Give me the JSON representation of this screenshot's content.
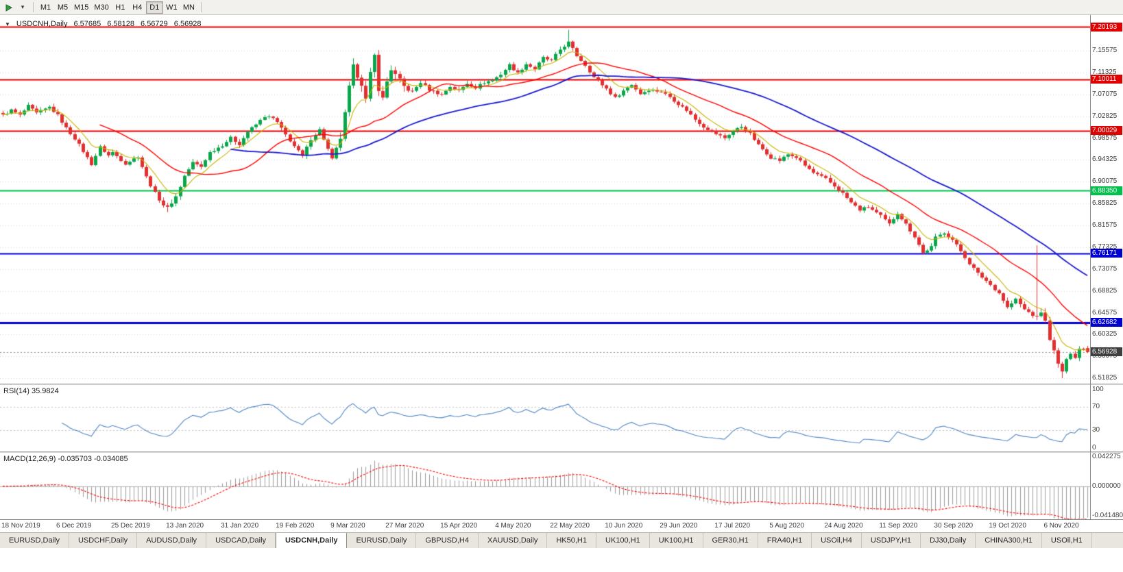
{
  "toolbar": {
    "timeframes": [
      "M1",
      "M5",
      "M15",
      "M30",
      "H1",
      "H4",
      "D1",
      "W1",
      "MN"
    ],
    "active_timeframe": "D1"
  },
  "chart": {
    "symbol_period": "USDCNH,Daily",
    "ohlc": {
      "open": "6.57685",
      "high": "6.58128",
      "low": "6.56729",
      "close": "6.56928"
    }
  },
  "chart_data": {
    "type": "candlestick",
    "symbol": "USDCNH",
    "period": "Daily",
    "num_candles": 258,
    "x_ticks": {
      "labels": [
        "18 Nov 2019",
        "6 Dec 2019",
        "25 Dec 2019",
        "13 Jan 2020",
        "31 Jan 2020",
        "19 Feb 2020",
        "9 Mar 2020",
        "27 Mar 2020",
        "15 Apr 2020",
        "4 May 2020",
        "22 May 2020",
        "10 Jun 2020",
        "29 Jun 2020",
        "17 Jul 2020",
        "5 Aug 2020",
        "24 Aug 2020",
        "11 Sep 2020",
        "30 Sep 2020",
        "19 Oct 2020",
        "6 Nov 2020"
      ],
      "candle_indices": [
        0,
        13,
        26,
        39,
        52,
        65,
        78,
        91,
        104,
        117,
        130,
        143,
        156,
        169,
        182,
        195,
        208,
        221,
        234,
        247
      ]
    },
    "y_axis": {
      "range": {
        "top": 7.2251,
        "bottom": 6.5078
      },
      "ticks": [
        "7.15575",
        "7.11325",
        "7.07075",
        "7.02825",
        "6.98575",
        "6.94325",
        "6.90075",
        "6.85825",
        "6.81575",
        "6.77325",
        "6.73075",
        "6.68825",
        "6.64575",
        "6.60325",
        "6.56075",
        "6.51825"
      ]
    },
    "close_anchors": [
      [
        0,
        7.03
      ],
      [
        2,
        7.04
      ],
      [
        4,
        7.03
      ],
      [
        6,
        7.048
      ],
      [
        8,
        7.034
      ],
      [
        11,
        7.046
      ],
      [
        13,
        7.03
      ],
      [
        15,
        7.005
      ],
      [
        17,
        6.985
      ],
      [
        19,
        6.96
      ],
      [
        21,
        6.935
      ],
      [
        23,
        6.968
      ],
      [
        25,
        6.952
      ],
      [
        26,
        6.958
      ],
      [
        29,
        6.936
      ],
      [
        32,
        6.95
      ],
      [
        34,
        6.91
      ],
      [
        36,
        6.878
      ],
      [
        38,
        6.856
      ],
      [
        39,
        6.8495
      ],
      [
        41,
        6.872
      ],
      [
        43,
        6.912
      ],
      [
        45,
        6.938
      ],
      [
        47,
        6.93
      ],
      [
        49,
        6.958
      ],
      [
        52,
        6.972
      ],
      [
        54,
        6.986
      ],
      [
        56,
        6.974
      ],
      [
        58,
        6.998
      ],
      [
        60,
        7.012
      ],
      [
        62,
        7.028
      ],
      [
        64,
        7.024
      ],
      [
        65,
        7.016
      ],
      [
        67,
        6.992
      ],
      [
        69,
        6.97
      ],
      [
        71,
        6.95
      ],
      [
        73,
        6.984
      ],
      [
        75,
        7.002
      ],
      [
        76,
        6.984
      ],
      [
        78,
        6.944
      ],
      [
        80,
        6.986
      ],
      [
        81,
        7.032
      ],
      [
        82,
        7.084
      ],
      [
        83,
        7.124
      ],
      [
        85,
        7.092
      ],
      [
        86,
        7.06
      ],
      [
        87,
        7.11
      ],
      [
        88,
        7.146
      ],
      [
        89,
        7.082
      ],
      [
        90,
        7.062
      ],
      [
        91,
        7.096
      ],
      [
        92,
        7.12
      ],
      [
        93,
        7.108
      ],
      [
        95,
        7.086
      ],
      [
        97,
        7.076
      ],
      [
        99,
        7.094
      ],
      [
        101,
        7.08
      ],
      [
        104,
        7.07
      ],
      [
        106,
        7.086
      ],
      [
        108,
        7.078
      ],
      [
        110,
        7.092
      ],
      [
        112,
        7.084
      ],
      [
        114,
        7.094
      ],
      [
        116,
        7.098
      ],
      [
        118,
        7.11
      ],
      [
        120,
        7.128
      ],
      [
        122,
        7.112
      ],
      [
        124,
        7.13
      ],
      [
        126,
        7.12
      ],
      [
        128,
        7.142
      ],
      [
        130,
        7.136
      ],
      [
        132,
        7.158
      ],
      [
        134,
        7.172
      ],
      [
        136,
        7.146
      ],
      [
        138,
        7.128
      ],
      [
        140,
        7.104
      ],
      [
        143,
        7.082
      ],
      [
        145,
        7.064
      ],
      [
        147,
        7.078
      ],
      [
        149,
        7.09
      ],
      [
        151,
        7.072
      ],
      [
        153,
        7.08
      ],
      [
        156,
        7.076
      ],
      [
        158,
        7.066
      ],
      [
        160,
        7.052
      ],
      [
        162,
        7.04
      ],
      [
        164,
        7.022
      ],
      [
        166,
        7.008
      ],
      [
        169,
        6.994
      ],
      [
        171,
        6.986
      ],
      [
        173,
        7.0
      ],
      [
        175,
        7.008
      ],
      [
        177,
        6.994
      ],
      [
        179,
        6.972
      ],
      [
        182,
        6.948
      ],
      [
        184,
        6.942
      ],
      [
        186,
        6.954
      ],
      [
        188,
        6.948
      ],
      [
        190,
        6.932
      ],
      [
        192,
        6.918
      ],
      [
        195,
        6.906
      ],
      [
        197,
        6.892
      ],
      [
        199,
        6.878
      ],
      [
        201,
        6.86
      ],
      [
        203,
        6.846
      ],
      [
        205,
        6.852
      ],
      [
        207,
        6.84
      ],
      [
        208,
        6.834
      ],
      [
        210,
        6.818
      ],
      [
        212,
        6.84
      ],
      [
        214,
        6.818
      ],
      [
        216,
        6.794
      ],
      [
        218,
        6.762
      ],
      [
        220,
        6.774
      ],
      [
        221,
        6.792
      ],
      [
        223,
        6.802
      ],
      [
        225,
        6.788
      ],
      [
        227,
        6.766
      ],
      [
        229,
        6.742
      ],
      [
        231,
        6.722
      ],
      [
        233,
        6.708
      ],
      [
        234,
        6.7
      ],
      [
        236,
        6.684
      ],
      [
        238,
        6.656
      ],
      [
        240,
        6.672
      ],
      [
        242,
        6.652
      ],
      [
        244,
        6.642
      ],
      [
        245,
        6.636
      ],
      [
        246,
        6.648
      ],
      [
        247,
        6.628
      ],
      [
        248,
        6.596
      ],
      [
        249,
        6.57
      ],
      [
        250,
        6.545
      ],
      [
        251,
        6.532
      ],
      [
        252,
        6.552
      ],
      [
        253,
        6.568
      ],
      [
        254,
        6.56
      ],
      [
        255,
        6.576
      ],
      [
        256,
        6.573
      ],
      [
        257,
        6.56928
      ]
    ],
    "volatility_zones": [
      {
        "from": 80,
        "to": 96,
        "mult": 2.0
      },
      {
        "from": 36,
        "to": 42,
        "mult": 1.3
      },
      {
        "from": 244,
        "to": 252,
        "mult": 1.5
      }
    ],
    "overrides": {
      "39": {
        "low": 6.8415
      },
      "134": {
        "high": 7.1965
      },
      "245": {
        "high": 6.777
      },
      "251": {
        "low": 6.5185
      },
      "257": {
        "open": 6.57685,
        "high": 6.58128,
        "low": 6.56729,
        "close": 6.56928
      }
    },
    "hlines": [
      {
        "price": 7.20193,
        "label": "7.20193",
        "color": "#e00000",
        "width": 2
      },
      {
        "price": 7.10011,
        "label": "7.10011",
        "color": "#e00000",
        "width": 2
      },
      {
        "price": 7.00029,
        "label": "7.00029",
        "color": "#e00000",
        "width": 2
      },
      {
        "price": 6.8835,
        "label": "6.88350",
        "color": "#00c24b",
        "width": 2
      },
      {
        "price": 6.76171,
        "label": "6.76171",
        "color": "#0000d0",
        "width": 2
      },
      {
        "price": 6.62682,
        "label": "6.62682",
        "color": "#0000d0",
        "width": 3
      }
    ],
    "current_price": {
      "price": 6.56928,
      "label": "6.56928",
      "color": "#3f3f3f"
    },
    "moving_averages": [
      {
        "type": "EMA",
        "period": 8,
        "color": "#c9b500"
      },
      {
        "type": "SMA",
        "period": 24,
        "color": "#ff0000"
      },
      {
        "type": "SMA",
        "period": 55,
        "color": "#1a1acd"
      }
    ],
    "indicators": [
      {
        "name": "RSI",
        "label": "RSI(14) 35.9824",
        "period": 14,
        "value": 35.9824,
        "levels": [
          70,
          30
        ],
        "axis_ticks": [
          {
            "value": 100,
            "label": "100"
          },
          {
            "value": 70,
            "label": "70"
          },
          {
            "value": 30,
            "label": "30"
          },
          {
            "value": 0,
            "label": "0"
          }
        ],
        "color": "#4f86c6"
      },
      {
        "name": "MACD",
        "label": "MACD(12,26,9) -0.035703 -0.034085",
        "macd_value": -0.035703,
        "signal_value": -0.034085,
        "axis_ticks": [
          {
            "value": 0.042275,
            "label": "0.042275"
          },
          {
            "value": 0,
            "label": "0.000000"
          },
          {
            "value": -0.04148,
            "label": "-0.041480"
          }
        ],
        "histogram_color": "#9c9c9c",
        "signal_color": "#ff0000",
        "range": {
          "top": 0.0478,
          "bottom": -0.047
        }
      }
    ],
    "candle_up_color": "#0aa64c",
    "candle_down_color": "#e22f2f",
    "grid_color": "#d6d6d6"
  },
  "tabs": {
    "items": [
      "EURUSD,Daily",
      "USDCHF,Daily",
      "AUDUSD,Daily",
      "USDCAD,Daily",
      "USDCNH,Daily",
      "EURUSD,Daily",
      "GBPUSD,H4",
      "XAUUSD,Daily",
      "HK50,H1",
      "UK100,H1",
      "UK100,H1",
      "GER30,H1",
      "FRA40,H1",
      "USOil,H4",
      "USDJPY,H1",
      "DJ30,Daily",
      "CHINA300,H1",
      "USOil,H1"
    ],
    "active_index": 4
  }
}
